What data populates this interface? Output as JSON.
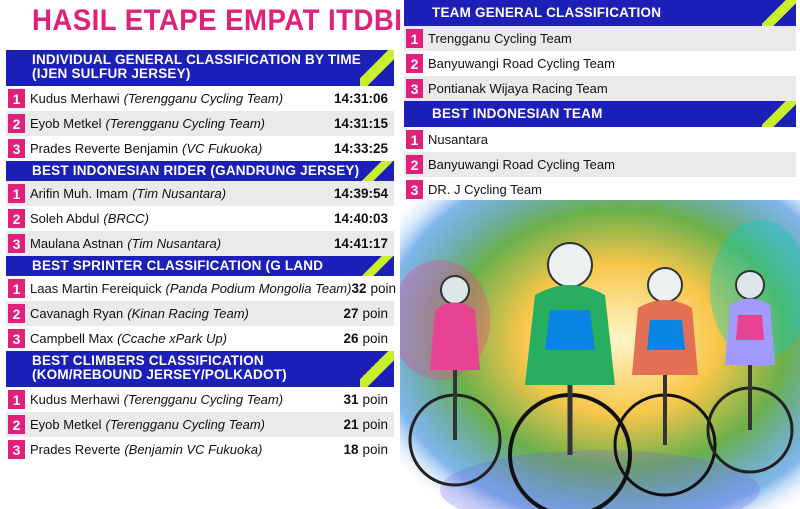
{
  "title": "HASIL ETAPE EMPAT ITDBI",
  "colors": {
    "title": "#e0207a",
    "header": "#1c1fb8",
    "rank": "#e0207a",
    "accent": "#c8ee2c"
  },
  "individual_gc": {
    "header_line1": "INDIVIDUAL GENERAL CLASSIFICATION BY TIME",
    "header_line2": "(IJEN SULFUR JERSEY)",
    "rows": [
      {
        "rank": "1",
        "name": "Kudus Merhawi",
        "team": "(Terengganu Cycling Team)",
        "value": "14:31:06"
      },
      {
        "rank": "2",
        "name": "Eyob Metkel",
        "team": "(Terengganu Cycling Team)",
        "value": "14:31:15"
      },
      {
        "rank": "3",
        "name": "Prades Reverte Benjamin",
        "team": "(VC Fukuoka)",
        "value": "14:33:25"
      }
    ]
  },
  "best_indonesian_rider": {
    "header": "BEST INDONESIAN RIDER (GANDRUNG JERSEY)",
    "rows": [
      {
        "rank": "1",
        "name": "Arifin Muh. Imam",
        "team": "(Tim Nusantara)",
        "value": "14:39:54"
      },
      {
        "rank": "2",
        "name": "Soleh Abdul",
        "team": "(BRCC)",
        "value": "14:40:03"
      },
      {
        "rank": "3",
        "name": "Maulana Astnan",
        "team": "(Tim Nusantara)",
        "value": "14:41:17"
      }
    ]
  },
  "sprinter": {
    "header": "BEST SPRINTER CLASSIFICATION (G LAND JERSEY)",
    "unit": "poin",
    "rows": [
      {
        "rank": "1",
        "name": "Laas Martin Fereiquick",
        "team": "(Panda Podium Mongolia Team)",
        "value": "32"
      },
      {
        "rank": "2",
        "name": "Cavanagh Ryan",
        "team": "(Kinan Racing Team)",
        "value": "27"
      },
      {
        "rank": "3",
        "name": "Campbell Max",
        "team": "(Ccache xPark Up)",
        "value": "26"
      }
    ]
  },
  "climbers": {
    "header_line1": "BEST CLIMBERS CLASSIFICATION",
    "header_line2": "(KOM/REBOUND JERSEY/POLKADOT)",
    "unit": "poin",
    "rows": [
      {
        "rank": "1",
        "name": "Kudus Merhawi",
        "team": "(Terengganu Cycling Team)",
        "value": "31"
      },
      {
        "rank": "2",
        "name": "Eyob Metkel",
        "team": "(Terengganu Cycling Team)",
        "value": "21"
      },
      {
        "rank": "3",
        "name": "Prades Reverte",
        "team": "(Benjamin VC Fukuoka)",
        "value": "18"
      }
    ]
  },
  "team_gc": {
    "header": "TEAM GENERAL CLASSIFICATION",
    "rows": [
      {
        "rank": "1",
        "name": "Trengganu Cycling Team"
      },
      {
        "rank": "2",
        "name": "Banyuwangi Road Cycling Team"
      },
      {
        "rank": "3",
        "name": "Pontianak Wijaya Racing Team"
      }
    ]
  },
  "best_indonesian_team": {
    "header": "BEST INDONESIAN TEAM",
    "rows": [
      {
        "rank": "1",
        "name": "Nusantara"
      },
      {
        "rank": "2",
        "name": "Banyuwangi Road Cycling Team"
      },
      {
        "rank": "3",
        "name": "DR. J Cycling Team"
      }
    ]
  }
}
